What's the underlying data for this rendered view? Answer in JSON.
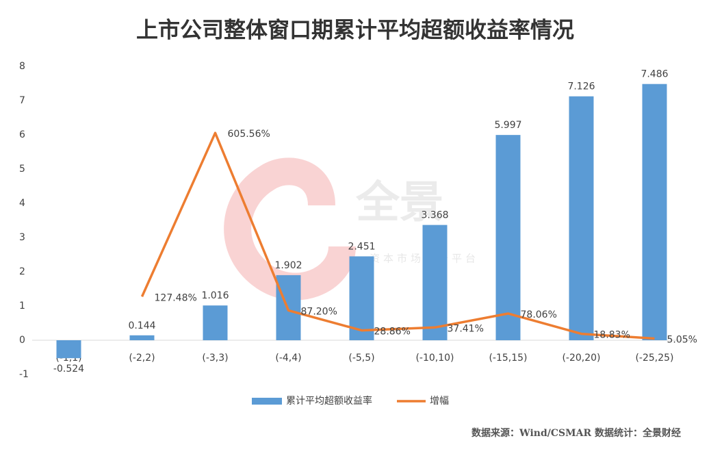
{
  "chart_data": {
    "type": "bar_line",
    "title": "上市公司整体窗口期累计平均超额收益率情况",
    "categories": [
      "(-1,1)",
      "(-2,2)",
      "(-3,3)",
      "(-4,4)",
      "(-5,5)",
      "(-10,10)",
      "(-15,15)",
      "(-20,20)",
      "(-25,25)"
    ],
    "series": [
      {
        "name": "累计平均超额收益率",
        "color": "#5b9bd5",
        "values": [
          -0.524,
          0.144,
          1.016,
          1.902,
          2.451,
          3.368,
          5.997,
          7.126,
          7.486
        ]
      },
      {
        "name": "增幅",
        "color": "#ed7d31",
        "axis": "y2",
        "values": [
          null,
          127.48,
          605.56,
          87.2,
          28.86,
          37.41,
          78.06,
          18.83,
          5.05
        ],
        "value_labels": [
          null,
          "127.48%",
          "605.56%",
          "87.20%",
          "28.86%",
          "37.41%",
          "78.06%",
          "18.83%",
          "5.05%"
        ]
      }
    ],
    "ylim": [
      -1,
      8
    ],
    "yticks": [
      -1,
      0,
      1,
      2,
      3,
      4,
      5,
      6,
      7,
      8
    ],
    "y2lim": [
      -100,
      800
    ],
    "legend": "bottom",
    "source": "数据来源：Wind/CSMAR  数据统计：全景财经",
    "watermark": {
      "logo": "全景",
      "tagline": "资本市场服务平台"
    }
  }
}
